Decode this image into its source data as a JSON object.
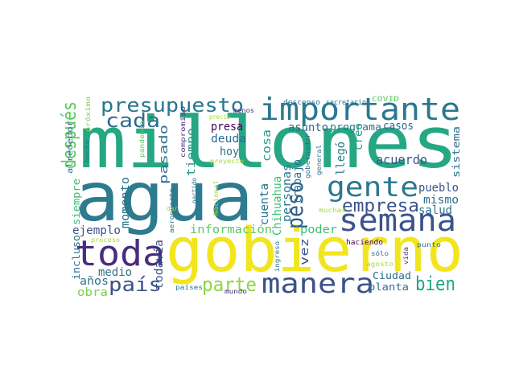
{
  "palette": {
    "yellow": "#e6e11a",
    "lime": "#a5d93a",
    "green": "#3fbc73",
    "teal": "#2a9d8a",
    "cyan": "#238a8d",
    "blue": "#2f6b8e",
    "indigo": "#3b528b",
    "purple": "#472d7b",
    "dark": "#440154"
  },
  "words": [
    {
      "text": "millones",
      "color": "#26a784"
    },
    {
      "text": "agua",
      "color": "#2c7b8e"
    },
    {
      "text": "gobierno",
      "color": "#f2e51d"
    },
    {
      "text": "importante",
      "color": "#2a788e"
    },
    {
      "text": "semana",
      "color": "#3b528b"
    },
    {
      "text": "toda",
      "color": "#472d7b"
    },
    {
      "text": "manera",
      "color": "#3b528b"
    },
    {
      "text": "presupuesto",
      "color": "#2a788e"
    },
    {
      "text": "gente",
      "color": "#2a788e"
    },
    {
      "text": "peso",
      "color": "#2c5f8a"
    },
    {
      "text": "después",
      "color": "#5cc863"
    },
    {
      "text": "cada",
      "color": "#2f6b8e"
    },
    {
      "text": "país",
      "color": "#3b528b"
    },
    {
      "text": "parte",
      "color": "#8fd744"
    },
    {
      "text": "bien",
      "color": "#21a685"
    },
    {
      "text": "empresa",
      "color": "#3b528b"
    },
    {
      "text": "presa",
      "color": "#440154"
    },
    {
      "text": "deuda",
      "color": "#2f6b8e"
    },
    {
      "text": "hoy",
      "color": "#2c728e"
    },
    {
      "text": "pasado",
      "color": "#2c728e"
    },
    {
      "text": "tiempo",
      "color": "#2a9d8a"
    },
    {
      "text": "cosa",
      "color": "#2a9d8a"
    },
    {
      "text": "asunto",
      "color": "#2f6b8e"
    },
    {
      "text": "programa",
      "color": "#2c728e"
    },
    {
      "text": "casos",
      "color": "#2f6b8e"
    },
    {
      "text": "creo",
      "color": "#2a9d8a"
    },
    {
      "text": "llegó",
      "color": "#2a788e"
    },
    {
      "text": "acuerdo",
      "color": "#3b528b"
    },
    {
      "text": "sistema",
      "color": "#2c728e"
    },
    {
      "text": "pueblo",
      "color": "#3b528b"
    },
    {
      "text": "mismo",
      "color": "#2c728e"
    },
    {
      "text": "salud",
      "color": "#2c728e"
    },
    {
      "text": "trabajo",
      "color": "#2c728e"
    },
    {
      "text": "personas",
      "color": "#2a788e"
    },
    {
      "text": "Chihuahua",
      "color": "#3fbc73"
    },
    {
      "text": "cuenta",
      "color": "#2c728e"
    },
    {
      "text": "poder",
      "color": "#3fbc73"
    },
    {
      "text": "información",
      "color": "#5cc863"
    },
    {
      "text": "ejemplo",
      "color": "#3b528b"
    },
    {
      "text": "momento",
      "color": "#2c728e"
    },
    {
      "text": "medio",
      "color": "#2c728e"
    },
    {
      "text": "todavía",
      "color": "#3b528b"
    },
    {
      "text": "vez",
      "color": "#3b528b"
    },
    {
      "text": "Ciudad",
      "color": "#2c728e"
    },
    {
      "text": "planta",
      "color": "#2c728e"
    },
    {
      "text": "obra",
      "color": "#7ad151"
    },
    {
      "text": "años",
      "color": "#2c728e"
    },
    {
      "text": "incluso",
      "color": "#2c728e"
    },
    {
      "text": "siempre",
      "color": "#3fbc73"
    },
    {
      "text": "alrededor",
      "color": "#2c728e"
    },
    {
      "text": "próximo",
      "color": "#7ad151"
    },
    {
      "text": "hecho",
      "color": "#2c728e"
    },
    {
      "text": "pandemia",
      "color": "#5cc863"
    },
    {
      "text": "compromiso",
      "color": "#472d7b"
    },
    {
      "text": "precio",
      "color": "#a5db36"
    },
    {
      "text": "menos",
      "color": "#472d7b"
    },
    {
      "text": "descenso",
      "color": "#2c728e"
    },
    {
      "text": "secretario",
      "color": "#2c728e"
    },
    {
      "text": "COVID",
      "color": "#5cc863"
    },
    {
      "text": "gobernador",
      "color": "#2c728e"
    },
    {
      "text": "proyecto",
      "color": "#a5db36"
    },
    {
      "text": "general",
      "color": "#2c728e"
    },
    {
      "text": "haciendo",
      "color": "#440154"
    },
    {
      "text": "punto",
      "color": "#2c728e"
    },
    {
      "text": "aeropuerto",
      "color": "#2c728e"
    },
    {
      "text": "partido",
      "color": "#2c728e"
    },
    {
      "text": "dar",
      "color": "#a5db36"
    },
    {
      "text": "Nacional",
      "color": "#a5db36"
    },
    {
      "text": "muchas",
      "color": "#a5db36"
    },
    {
      "text": "ingreso",
      "color": "#2c728e"
    },
    {
      "text": "sólo",
      "color": "#2c728e"
    },
    {
      "text": "agosto",
      "color": "#a5db36"
    },
    {
      "text": "vida",
      "color": "#472d7b"
    },
    {
      "text": "proceso",
      "color": "#a5db36"
    },
    {
      "text": "países",
      "color": "#2c728e"
    },
    {
      "text": "mundo",
      "color": "#472d7b"
    }
  ]
}
